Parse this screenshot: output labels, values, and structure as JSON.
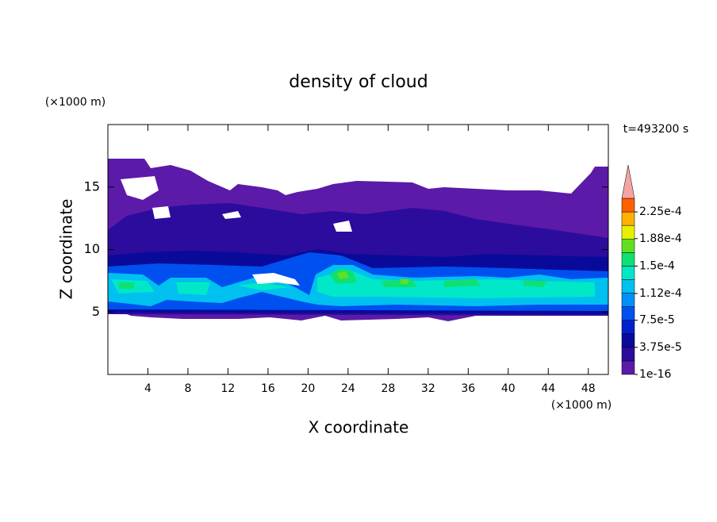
{
  "chart_data": {
    "type": "contour",
    "title": "density of cloud",
    "x_label": "X coordinate",
    "y_label": "Z coordinate",
    "x_unit": "(×1000 m)",
    "y_unit": "(×1000 m)",
    "annotation": "t=493200 s",
    "xlim": [
      0,
      50
    ],
    "ylim": [
      0,
      20
    ],
    "xticks": [
      4,
      8,
      12,
      16,
      20,
      24,
      28,
      32,
      36,
      40,
      44,
      48
    ],
    "yticks": [
      5,
      10,
      15
    ],
    "colorbar": {
      "clim": [
        1e-16,
        0.00024375
      ],
      "levels": [
        1e-16,
        1.875e-05,
        3.75e-05,
        5.625e-05,
        7.5e-05,
        9.375e-05,
        0.0001125,
        0.00013125,
        0.00015,
        0.00016875,
        0.0001875,
        0.00020625,
        0.000225
      ],
      "colors": [
        "#5c1aa8",
        "#2c0c9c",
        "#0a0a9a",
        "#0020d0",
        "#0050f0",
        "#0090f8",
        "#00c0f0",
        "#00e8c8",
        "#10e070",
        "#60e020",
        "#e8f000",
        "#ffb000",
        "#ff6000"
      ],
      "extend": "max",
      "extend_color": "#f4a4a4",
      "ticks": [
        {
          "value": 1e-16,
          "label": "1e-16"
        },
        {
          "value": 3.75e-05,
          "label": "3.75e-5"
        },
        {
          "value": 7.5e-05,
          "label": "7.5e-5"
        },
        {
          "value": 0.000112,
          "label": "1.12e-4"
        },
        {
          "value": 0.00015,
          "label": "1.5e-4"
        },
        {
          "value": 0.000188,
          "label": "1.88e-4"
        },
        {
          "value": 0.000225,
          "label": "2.25e-4"
        }
      ]
    }
  }
}
